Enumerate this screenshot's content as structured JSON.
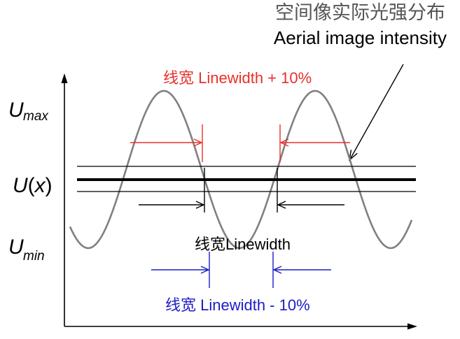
{
  "title": {
    "cn": "空间像实际光强分布",
    "en": "Aerial image intensity"
  },
  "labels": {
    "u_max": {
      "var": "U",
      "sub": "max"
    },
    "u_x": {
      "var": "U",
      "open": "(",
      "arg": "x",
      "close": ")"
    },
    "u_min": {
      "var": "U",
      "sub": "min"
    },
    "linewidth_plus": "线宽 Linewidth + 10%",
    "linewidth": "线宽Linewidth",
    "linewidth_minus": "线宽 Linewidth - 10%"
  },
  "colors": {
    "wave": "#808080",
    "plus": "#e8302a",
    "nominal": "#000000",
    "minus": "#1c1cc8",
    "title_cn": "#555555",
    "title_en": "#000000"
  }
}
